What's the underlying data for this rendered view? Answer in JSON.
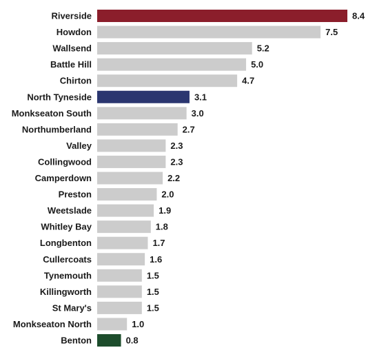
{
  "chart_data": {
    "type": "bar",
    "orientation": "horizontal",
    "title": "",
    "xlabel": "",
    "ylabel": "",
    "xlim": [
      0,
      8.4
    ],
    "grid": false,
    "legend": "none",
    "categories": [
      "Riverside",
      "Howdon",
      "Wallsend",
      "Battle Hill",
      "Chirton",
      "North Tyneside",
      "Monkseaton South",
      "Northumberland",
      "Valley",
      "Collingwood",
      "Camperdown",
      "Preston",
      "Weetslade",
      "Whitley Bay",
      "Longbenton",
      "Cullercoats",
      "Tynemouth",
      "Killingworth",
      "St Mary's",
      "Monkseaton North",
      "Benton"
    ],
    "values": [
      8.4,
      7.5,
      5.2,
      5.0,
      4.7,
      3.1,
      3.0,
      2.7,
      2.3,
      2.3,
      2.2,
      2.0,
      1.9,
      1.8,
      1.7,
      1.6,
      1.5,
      1.5,
      1.5,
      1.0,
      0.8
    ],
    "value_labels": [
      "8.4",
      "7.5",
      "5.2",
      "5.0",
      "4.7",
      "3.1",
      "3.0",
      "2.7",
      "2.3",
      "2.3",
      "2.2",
      "2.0",
      "1.9",
      "1.8",
      "1.7",
      "1.6",
      "1.5",
      "1.5",
      "1.5",
      "1.0",
      "0.8"
    ],
    "bar_colors": [
      "#8b1e2b",
      "#cccccc",
      "#cccccc",
      "#cccccc",
      "#cccccc",
      "#2b3670",
      "#cccccc",
      "#cccccc",
      "#cccccc",
      "#cccccc",
      "#cccccc",
      "#cccccc",
      "#cccccc",
      "#cccccc",
      "#cccccc",
      "#cccccc",
      "#cccccc",
      "#cccccc",
      "#cccccc",
      "#cccccc",
      "#1d4d2c"
    ]
  }
}
